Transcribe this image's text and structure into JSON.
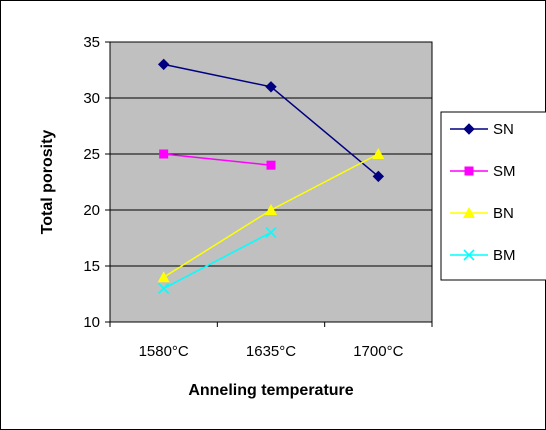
{
  "chart_data": {
    "type": "line",
    "title": "",
    "xlabel": "Anneling temperature",
    "ylabel": "Total porosity",
    "categories": [
      "1580°C",
      "1635°C",
      "1700°C"
    ],
    "ylim": [
      10,
      35
    ],
    "yticks": [
      10,
      15,
      20,
      25,
      30,
      35
    ],
    "grid": "horizontal",
    "plot_background": "#c0c0c0",
    "legend_position": "right",
    "series": [
      {
        "name": "SN",
        "values": [
          33,
          31,
          23
        ],
        "color": "#000080",
        "marker": "diamond"
      },
      {
        "name": "SM",
        "values": [
          25,
          24,
          null
        ],
        "color": "#ff00ff",
        "marker": "square"
      },
      {
        "name": "BN",
        "values": [
          14,
          20,
          25
        ],
        "color": "#ffff00",
        "marker": "triangle"
      },
      {
        "name": "BM",
        "values": [
          13,
          18,
          null
        ],
        "color": "#00ffff",
        "marker": "x"
      }
    ]
  }
}
